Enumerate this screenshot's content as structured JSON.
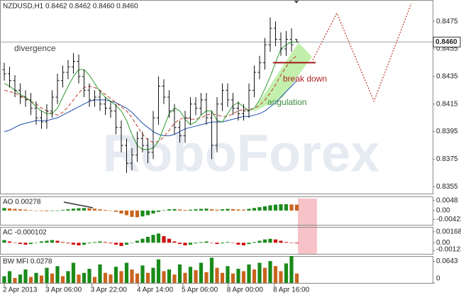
{
  "chart_data": {
    "type": "ohlc",
    "title": "NZDUSD,H1  0.8462 0.8462 0.8460 0.8460",
    "watermark": "RoboForex",
    "ylim": [
      0.835,
      0.849
    ],
    "yticks": [
      0.8475,
      0.8455,
      0.8435,
      0.8415,
      0.8395,
      0.8375,
      0.8355
    ],
    "current_price": {
      "value": 0.846,
      "label": "0.8460"
    },
    "xlim": [
      -0.8,
      80.5
    ],
    "xticks": [
      {
        "value": 0,
        "label": "2 Apr 2013"
      },
      {
        "value": 8,
        "label": "3 Apr 06:00"
      },
      {
        "value": 16.5,
        "label": "3 Apr 22:00"
      },
      {
        "value": 25.2,
        "label": "4 Apr 14:00"
      },
      {
        "value": 33.6,
        "label": "5 Apr 06:00"
      },
      {
        "value": 42.1,
        "label": "8 Apr 00:00"
      },
      {
        "value": 50.8,
        "label": "8 Apr 16:00"
      }
    ],
    "bar_color": "#111111",
    "ohlc": [
      [
        0.844,
        0.8445,
        0.8432,
        0.8437
      ],
      [
        0.8437,
        0.8442,
        0.8427,
        0.8432
      ],
      [
        0.8432,
        0.8436,
        0.842,
        0.8425
      ],
      [
        0.8425,
        0.843,
        0.8415,
        0.842
      ],
      [
        0.842,
        0.8425,
        0.8413,
        0.8418
      ],
      [
        0.8418,
        0.8423,
        0.8407,
        0.8412
      ],
      [
        0.8412,
        0.8417,
        0.84,
        0.8405
      ],
      [
        0.8405,
        0.841,
        0.8397,
        0.8402
      ],
      [
        0.8402,
        0.8415,
        0.8397,
        0.841
      ],
      [
        0.841,
        0.8425,
        0.8405,
        0.842
      ],
      [
        0.842,
        0.8437,
        0.8415,
        0.8432
      ],
      [
        0.8432,
        0.8443,
        0.8427,
        0.8438
      ],
      [
        0.8438,
        0.8447,
        0.8433,
        0.8442
      ],
      [
        0.8442,
        0.8452,
        0.8437,
        0.8446
      ],
      [
        0.8446,
        0.8451,
        0.843,
        0.8435
      ],
      [
        0.8435,
        0.844,
        0.842,
        0.8425
      ],
      [
        0.8425,
        0.843,
        0.8413,
        0.8418
      ],
      [
        0.8418,
        0.8425,
        0.8413,
        0.842
      ],
      [
        0.842,
        0.8425,
        0.841,
        0.8415
      ],
      [
        0.8415,
        0.842,
        0.8407,
        0.8412
      ],
      [
        0.8412,
        0.8417,
        0.8405,
        0.841
      ],
      [
        0.841,
        0.8415,
        0.8393,
        0.8398
      ],
      [
        0.8398,
        0.8403,
        0.838,
        0.8385
      ],
      [
        0.8385,
        0.839,
        0.8365,
        0.8372
      ],
      [
        0.8372,
        0.8383,
        0.8367,
        0.8378
      ],
      [
        0.8378,
        0.8395,
        0.8373,
        0.839
      ],
      [
        0.839,
        0.8395,
        0.838,
        0.8385
      ],
      [
        0.8385,
        0.839,
        0.8372,
        0.838
      ],
      [
        0.838,
        0.841,
        0.8375,
        0.8405
      ],
      [
        0.8405,
        0.8435,
        0.84,
        0.8428
      ],
      [
        0.8428,
        0.8433,
        0.8415,
        0.842
      ],
      [
        0.842,
        0.8425,
        0.8405,
        0.841
      ],
      [
        0.841,
        0.8415,
        0.8393,
        0.8398
      ],
      [
        0.8398,
        0.8403,
        0.8387,
        0.8392
      ],
      [
        0.8392,
        0.841,
        0.8387,
        0.8405
      ],
      [
        0.8405,
        0.842,
        0.84,
        0.8415
      ],
      [
        0.8415,
        0.842,
        0.8407,
        0.8412
      ],
      [
        0.8412,
        0.8423,
        0.8407,
        0.8418
      ],
      [
        0.8418,
        0.8423,
        0.84,
        0.8405
      ],
      [
        0.8405,
        0.841,
        0.8375,
        0.8385
      ],
      [
        0.8385,
        0.842,
        0.838,
        0.8415
      ],
      [
        0.8415,
        0.843,
        0.841,
        0.8425
      ],
      [
        0.8425,
        0.843,
        0.8413,
        0.8418
      ],
      [
        0.8418,
        0.8423,
        0.8407,
        0.8412
      ],
      [
        0.8412,
        0.8417,
        0.8403,
        0.8408
      ],
      [
        0.8408,
        0.8415,
        0.8403,
        0.841
      ],
      [
        0.841,
        0.843,
        0.8405,
        0.8425
      ],
      [
        0.8425,
        0.8443,
        0.842,
        0.8438
      ],
      [
        0.8438,
        0.845,
        0.8433,
        0.8445
      ],
      [
        0.8445,
        0.8463,
        0.844,
        0.8458
      ],
      [
        0.8458,
        0.8478,
        0.8453,
        0.847
      ],
      [
        0.847,
        0.8475,
        0.8457,
        0.8462
      ],
      [
        0.8462,
        0.8467,
        0.845,
        0.8455
      ],
      [
        0.8455,
        0.8468,
        0.845,
        0.8462
      ],
      [
        0.8462,
        0.847,
        0.8453,
        0.8458
      ],
      [
        0.8462,
        0.8462,
        0.846,
        0.846
      ]
    ],
    "series": [
      {
        "color": "#1f4fb0",
        "dash": false,
        "values": [
          0.8395,
          0.8396,
          0.8398,
          0.84,
          0.8401,
          0.8402,
          0.8403,
          0.8403,
          0.8403,
          0.8404,
          0.8405,
          0.8407,
          0.8409,
          0.8411,
          0.8413,
          0.8415,
          0.8417,
          0.8418,
          0.8418,
          0.8418,
          0.8417,
          0.8416,
          0.8414,
          0.8412,
          0.8409,
          0.8405,
          0.8401,
          0.8398,
          0.8395,
          0.8393,
          0.8392,
          0.8392,
          0.8393,
          0.8395,
          0.8397,
          0.8398,
          0.8399,
          0.84,
          0.8401,
          0.8402,
          0.8402,
          0.8402,
          0.8403,
          0.8404,
          0.8405,
          0.8406,
          0.8406,
          0.8407,
          0.8408,
          0.841,
          0.8413,
          0.8416,
          0.842,
          0.8424,
          0.8428,
          0.8432
        ]
      },
      {
        "color": "#c0392b",
        "dash": true,
        "values": [
          0.8425,
          0.8424,
          0.8423,
          0.8421,
          0.8419,
          0.8417,
          0.8415,
          0.8412,
          0.841,
          0.8408,
          0.8407,
          0.8409,
          0.8413,
          0.8418,
          0.8423,
          0.8427,
          0.8428,
          0.8427,
          0.8425,
          0.8422,
          0.8419,
          0.8416,
          0.8413,
          0.841,
          0.8405,
          0.8399,
          0.8393,
          0.8389,
          0.8387,
          0.8388,
          0.8391,
          0.8396,
          0.8401,
          0.8404,
          0.8405,
          0.8404,
          0.8404,
          0.8405,
          0.8407,
          0.8408,
          0.8407,
          0.8406,
          0.8406,
          0.8408,
          0.841,
          0.8411,
          0.8411,
          0.8412,
          0.8414,
          0.8418,
          0.8423,
          0.8429,
          0.8436,
          0.8442,
          0.8447,
          0.845
        ]
      },
      {
        "color": "#2e9a2e",
        "dash": false,
        "values": [
          0.843,
          0.8428,
          0.8425,
          0.8422,
          0.842,
          0.8417,
          0.8413,
          0.841,
          0.8408,
          0.8408,
          0.8412,
          0.842,
          0.8428,
          0.8435,
          0.844,
          0.844,
          0.8436,
          0.843,
          0.8424,
          0.842,
          0.8417,
          0.8414,
          0.841,
          0.8403,
          0.8393,
          0.8385,
          0.8382,
          0.8382,
          0.8383,
          0.8388,
          0.8398,
          0.8408,
          0.8412,
          0.841,
          0.8404,
          0.84,
          0.8402,
          0.8407,
          0.841,
          0.841,
          0.8403,
          0.8402,
          0.8408,
          0.8414,
          0.8416,
          0.8413,
          0.841,
          0.8412,
          0.8418,
          0.8426,
          0.8435,
          0.8445,
          0.8455,
          0.8458,
          0.846,
          0.846
        ]
      }
    ],
    "forecast": {
      "color": "#c0392b",
      "x": [
        58,
        62.5,
        69.5,
        76.5
      ],
      "values": [
        0.8447,
        0.8481,
        0.8417,
        0.8488
      ]
    },
    "break_down_level": 0.8445,
    "annotations": [
      "divergence",
      "break down",
      "angulation"
    ],
    "indicators": [
      {
        "label": "AO 0.00278",
        "type": "bar",
        "up_color": "#1a8a1a",
        "down_color": "#c8641e",
        "ylim": [
          -0.0068,
          0.0064
        ],
        "yticks": [
          0.0048,
          {
            "value": 0,
            "label": "0.00"
          },
          -0.00422
        ],
        "values": [
          0.0012,
          0.001,
          0.0008,
          0.0006,
          0.0004,
          0.0002,
          0.0,
          -0.0002,
          -0.0003,
          -0.0002,
          0.0,
          0.0003,
          0.0006,
          0.0009,
          0.0011,
          0.0012,
          0.0011,
          0.0009,
          0.0006,
          0.0003,
          0.0,
          -0.0006,
          -0.0014,
          -0.0022,
          -0.003,
          -0.0032,
          -0.0028,
          -0.0022,
          -0.0014,
          -0.0006,
          0.0002,
          0.0006,
          0.0007,
          0.0005,
          0.0003,
          0.0004,
          0.0006,
          0.0008,
          0.0009,
          0.0006,
          0.0004,
          0.0006,
          0.0008,
          0.0007,
          0.0005,
          0.0004,
          0.0008,
          0.0012,
          0.0016,
          0.002,
          0.0025,
          0.0028,
          0.003,
          0.003,
          0.0029,
          0.0028
        ]
      },
      {
        "label": "AC -0.000102",
        "type": "bar",
        "up_color": "#1a8a1a",
        "down_color": "#d01010",
        "ylim": [
          -0.0017,
          0.0023
        ],
        "yticks": [
          0.00168,
          {
            "value": 0,
            "label": "0.00"
          },
          -0.00123
        ],
        "values": [
          0.0004,
          0.0002,
          0.0,
          -0.0002,
          -0.0003,
          -0.0002,
          0.0,
          0.0002,
          0.0003,
          0.0004,
          0.0003,
          0.0001,
          -0.0001,
          -0.0003,
          -0.0004,
          -0.0003,
          -0.0001,
          0.0001,
          0.0002,
          0.0001,
          -0.0001,
          -0.0003,
          -0.0005,
          -0.0003,
          0.0,
          0.0003,
          0.0006,
          0.0009,
          0.0012,
          0.0014,
          0.001,
          0.0006,
          0.0002,
          -0.0002,
          -0.0004,
          -0.0003,
          -0.0001,
          0.0001,
          0.0002,
          0.0,
          -0.0002,
          -0.0001,
          0.0001,
          0.0,
          -0.0003,
          -0.0004,
          -0.0002,
          0.0001,
          0.0003,
          0.0005,
          0.0006,
          0.0005,
          0.0003,
          0.0001,
          0.0,
          -0.0001
        ]
      },
      {
        "label": "BW MFI 0.0278",
        "type": "bar",
        "up_color": "#1a8a1a",
        "down_color": "#c8641e",
        "ylim": [
          0,
          0.078
        ],
        "yticks": [
          0.0643,
          0
        ],
        "values": [
          0.02,
          0.035,
          0.015,
          0.025,
          0.04,
          0.018,
          0.03,
          0.022,
          0.045,
          0.028,
          0.05,
          0.02,
          0.035,
          0.06,
          0.025,
          0.03,
          0.042,
          0.018,
          0.055,
          0.03,
          0.025,
          0.048,
          0.035,
          0.06,
          0.04,
          0.028,
          0.052,
          0.03,
          0.045,
          0.07,
          0.035,
          0.04,
          0.025,
          0.055,
          0.03,
          0.048,
          0.038,
          0.06,
          0.032,
          0.075,
          0.045,
          0.03,
          0.05,
          0.028,
          0.042,
          0.035,
          0.055,
          0.04,
          0.06,
          0.045,
          0.065,
          0.05,
          0.035,
          0.058,
          0.08,
          0.028
        ]
      }
    ]
  }
}
